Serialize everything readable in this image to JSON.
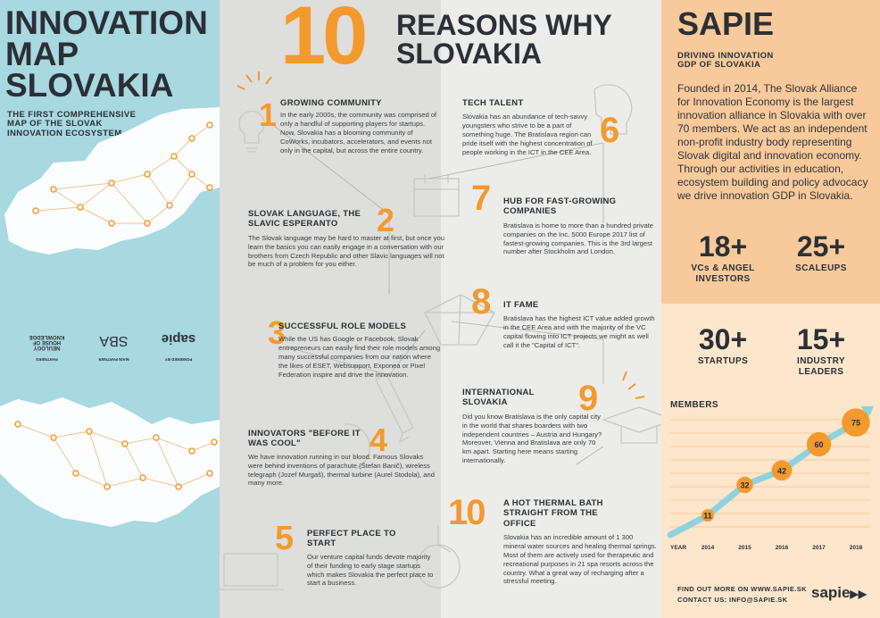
{
  "left": {
    "title_lines": [
      "INNOVATION",
      "MAP",
      "SLOVAKIA"
    ],
    "subtitle_lines": [
      "THE FIRST COMPREHENSIVE",
      "MAP OF THE SLOVAK",
      "INNOVATION ECOSYSTEM"
    ],
    "partners": {
      "powered_by_label": "POWERED BY",
      "powered_by_logo": "sapie",
      "main_partner_label": "MAIN PARTNER",
      "main_partner_logo": "SBA",
      "partners_label": "PARTNERS",
      "partner_logo_1": "HOUSE OF",
      "partner_logo_2": "KNOWLEDGE",
      "partner_logo_3": "NEULOGY"
    }
  },
  "middle": {
    "title_number": "10",
    "title_lines": [
      "REASONS WHY",
      "SLOVAKIA"
    ],
    "reasons": [
      {
        "num": "1",
        "title": "GROWING COMMUNITY",
        "text": "In the early 2000s, the community was comprised of only a handful of supporting players for startups. Now, Slovakia has a blooming community of CoWorks, incubators, accelerators, and events not only in the capital, but across the entire country."
      },
      {
        "num": "2",
        "title": "SLOVAK LANGUAGE, THE SLAVIC ESPERANTO",
        "text": "The Slovak language may be hard to master at first, but once you learn the basics you can easily engage in a conversation with our brothers from Czech Republic and other Slavic languages will not be much of a problem for you either."
      },
      {
        "num": "3",
        "title": "SUCCESSFUL ROLE MODELS",
        "text": "While the US has Google or Facebook, Slovak entrepreneurs can easily find their role models among many successful companies from our nation where the likes of ESET, Websupport, Exponea or Pixel Federation inspire and drive the innovation."
      },
      {
        "num": "4",
        "title": "INNOVATORS \"BEFORE IT WAS COOL\"",
        "text": "We have innovation running in our blood. Famous Slovaks were behind inventions of parachute (Štefan Banič), wireless telegraph (Jozef Murgaš), thermal turbine (Aurel Stodola), and many more."
      },
      {
        "num": "5",
        "title": "PERFECT PLACE TO START",
        "text": "Our venture capital funds devote majority of their funding to early stage startups which makes Slovakia the perfect place to start a business."
      },
      {
        "num": "6",
        "title": "TECH TALENT",
        "text": "Slovakia has an abundance of tech-savvy youngsters who strive to be a part of something huge. The Bratislava region can pride itself with the highest concentration of people working in the ICT in the CEE Area."
      },
      {
        "num": "7",
        "title": "HUB FOR FAST-GROWING COMPANIES",
        "text": "Bratislava is home to more than a hundred private companies on the Inc. 5000 Europe 2017 list of fastest-growing companies. This is the 3rd largest number after Stockholm and London."
      },
      {
        "num": "8",
        "title": "IT FAME",
        "text": "Bratislava has the highest ICT value added growth in the CEE Area and with the majority of the VC capital flowing into ICT projects we might as well call it the \"Capital of ICT\"."
      },
      {
        "num": "9",
        "title": "INTERNATIONAL SLOVAKIA",
        "text": "Did you know Bratislava is the only capital city in the world that shares boarders with two independent countries – Austria and Hungary? Moreover, Vienna and Bratislava are only 70 km apart. Starting here means starting internationally."
      },
      {
        "num": "10",
        "title": "A HOT THERMAL BATH STRAIGHT FROM THE OFFICE",
        "text": "Slovakia has an incredible amount of 1 300 mineral water sources and healing thermal springs. Most of them are actively used for therapeutic and recreational purposes in 21 spa resorts across the country. What a great way of recharging after a stressful meeting."
      }
    ]
  },
  "right": {
    "title": "SAPIE",
    "subtitle_lines": [
      "DRIVING INNOVATION",
      "GDP OF SLOVAKIA"
    ],
    "description": "Founded in 2014, The Slovak Alliance for Innovation Economy is the largest innovation alliance in Slovakia with over 70 members. We act as an independent non-profit industry body representing Slovak digital and innovation economy. Through our activities in education, ecosystem building and policy advocacy we drive innovation GDP in Slovakia.",
    "stats": [
      {
        "value": "18+",
        "label": "VCs & ANGEL INVESTORS"
      },
      {
        "value": "25+",
        "label": "SCALEUPS"
      },
      {
        "value": "30+",
        "label": "STARTUPS"
      },
      {
        "value": "15+",
        "label": "INDUSTRY LEADERS"
      }
    ],
    "footer_line1": "FIND OUT MORE ON WWW.SAPIE.SK",
    "footer_line2": "CONTACT US: INFO@SAPIE.SK",
    "footer_logo": "sapie"
  },
  "colors": {
    "accent": "#f39a2e",
    "left_bg": "#a8d8e0",
    "mid_bg": "#ececea",
    "right_top_bg": "#f8c99a",
    "right_bottom_bg": "#fde6cc",
    "dark_text": "#2b3036",
    "arrow": "#8ed2dc"
  },
  "chart_data": {
    "type": "line",
    "title": "MEMBERS",
    "x_axis_label": "YEAR",
    "x": [
      "2014",
      "2015",
      "2016",
      "2017",
      "2018"
    ],
    "series": [
      {
        "values": [
          11,
          32,
          42,
          60,
          75
        ]
      }
    ],
    "ylim": [
      0,
      80
    ]
  }
}
